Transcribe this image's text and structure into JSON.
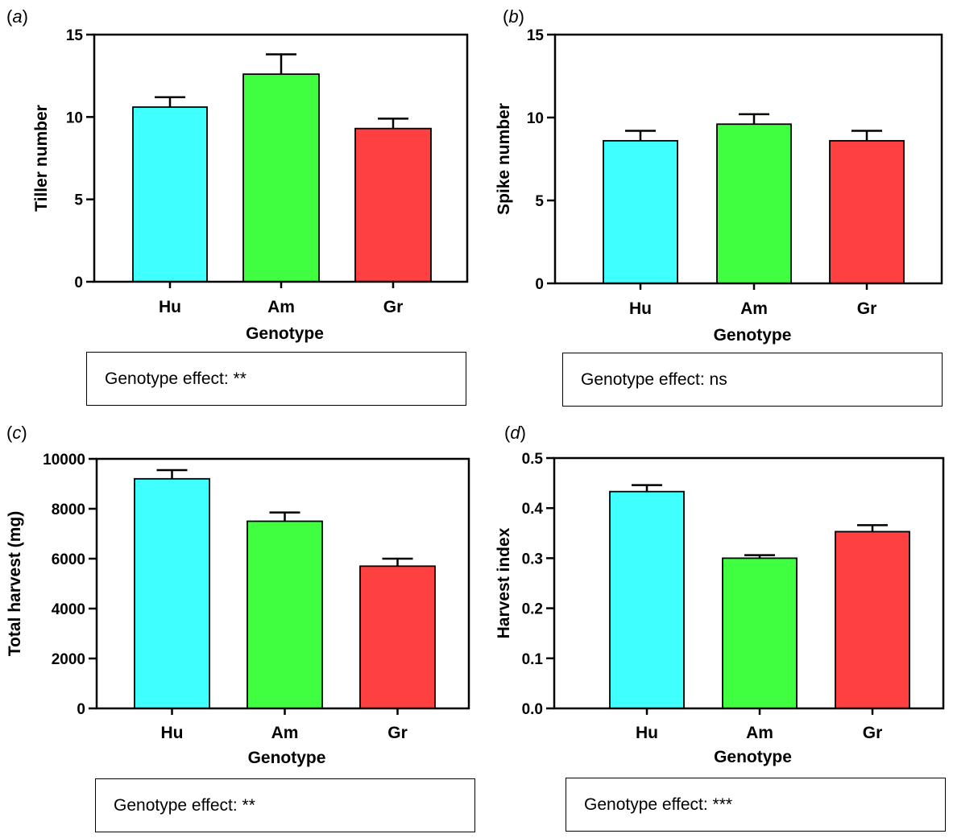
{
  "chart_data": [
    {
      "panel_label": "(a)",
      "letter": "a",
      "type": "bar",
      "categories": [
        "Hu",
        "Am",
        "Gr"
      ],
      "values": [
        10.6,
        12.6,
        9.3
      ],
      "errors": [
        0.6,
        1.2,
        0.6
      ],
      "colors": [
        "#40ffff",
        "#40ff40",
        "#ff4040"
      ],
      "ylabel": "Tiller number",
      "xlabel": "Genotype",
      "ylim": [
        0,
        15
      ],
      "yticks": [
        0,
        5,
        10,
        15
      ],
      "ytick_labels": [
        "0",
        "5",
        "10",
        "15"
      ],
      "effect_text": "Genotype effect: **"
    },
    {
      "panel_label": "(b)",
      "letter": "b",
      "type": "bar",
      "categories": [
        "Hu",
        "Am",
        "Gr"
      ],
      "values": [
        8.6,
        9.6,
        8.6
      ],
      "errors": [
        0.6,
        0.6,
        0.6
      ],
      "colors": [
        "#40ffff",
        "#40ff40",
        "#ff4040"
      ],
      "ylabel": "Spike number",
      "xlabel": "Genotype",
      "ylim": [
        0,
        15
      ],
      "yticks": [
        0,
        5,
        10,
        15
      ],
      "ytick_labels": [
        "0",
        "5",
        "10",
        "15"
      ],
      "effect_text": "Genotype effect: ns"
    },
    {
      "panel_label": "(c)",
      "letter": "c",
      "type": "bar",
      "categories": [
        "Hu",
        "Am",
        "Gr"
      ],
      "values": [
        9200,
        7500,
        5700
      ],
      "errors": [
        350,
        350,
        300
      ],
      "colors": [
        "#40ffff",
        "#40ff40",
        "#ff4040"
      ],
      "ylabel": "Total harvest (mg)",
      "xlabel": "Genotype",
      "ylim": [
        0,
        10000
      ],
      "yticks": [
        0,
        2000,
        4000,
        6000,
        8000,
        10000
      ],
      "ytick_labels": [
        "0",
        "2000",
        "4000",
        "6000",
        "8000",
        "10000"
      ],
      "effect_text": "Genotype effect: **"
    },
    {
      "panel_label": "(d)",
      "letter": "d",
      "type": "bar",
      "categories": [
        "Hu",
        "Am",
        "Gr"
      ],
      "values": [
        0.433,
        0.3,
        0.353
      ],
      "errors": [
        0.013,
        0.006,
        0.013
      ],
      "colors": [
        "#40ffff",
        "#40ff40",
        "#ff4040"
      ],
      "ylabel": "Harvest index",
      "xlabel": "Genotype",
      "ylim": [
        0,
        0.5
      ],
      "yticks": [
        0,
        0.1,
        0.2,
        0.3,
        0.4,
        0.5
      ],
      "ytick_labels": [
        "0.0",
        "0.1",
        "0.2",
        "0.3",
        "0.4",
        "0.5"
      ],
      "effect_text": "Genotype effect: ***"
    }
  ]
}
